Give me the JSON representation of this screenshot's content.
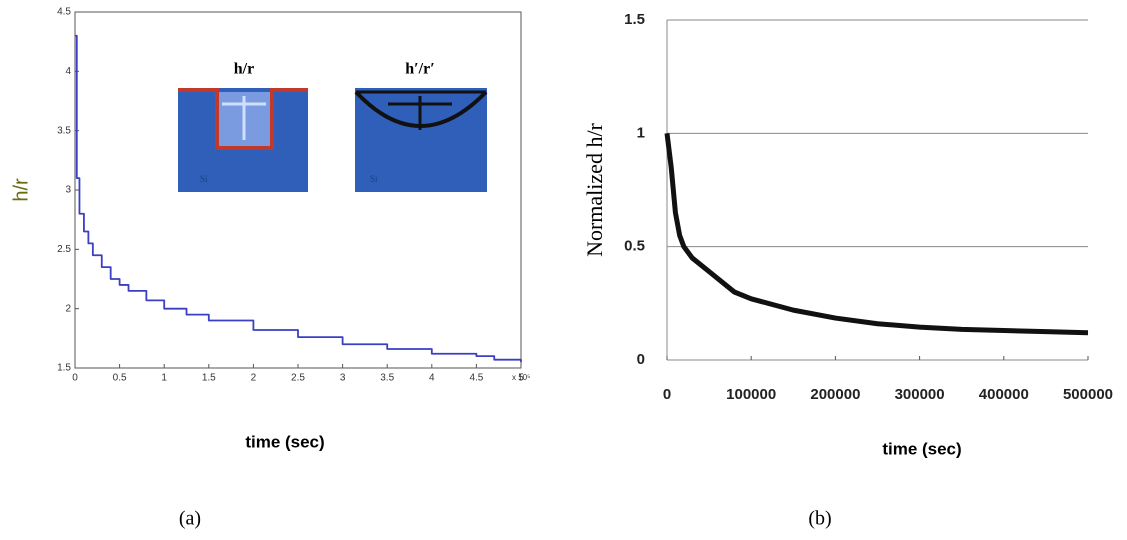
{
  "chart_data": [
    {
      "type": "line",
      "step": true,
      "caption": "(a)",
      "x_label": "time (sec)",
      "y_label": "h/r",
      "x_multiplier": "x 10⁵",
      "inset_labels": [
        "h/r",
        "h′/r′",
        "Si",
        "Si"
      ],
      "x": [
        0,
        0.02,
        0.05,
        0.1,
        0.15,
        0.2,
        0.3,
        0.4,
        0.5,
        0.6,
        0.8,
        1.0,
        1.25,
        1.5,
        2.0,
        2.5,
        3.0,
        3.5,
        4.0,
        4.5,
        4.7,
        5.0
      ],
      "series": [
        {
          "color": "#3a3fc4",
          "values": [
            4.3,
            3.1,
            2.8,
            2.65,
            2.55,
            2.45,
            2.35,
            2.25,
            2.2,
            2.15,
            2.07,
            2.0,
            1.95,
            1.9,
            1.82,
            1.76,
            1.7,
            1.66,
            1.62,
            1.6,
            1.57,
            1.55
          ]
        }
      ],
      "xlim": [
        0,
        5
      ],
      "xticks": [
        0,
        0.5,
        1,
        1.5,
        2,
        2.5,
        3,
        3.5,
        4,
        4.5,
        5
      ],
      "ylim": [
        1.5,
        4.5
      ],
      "yticks": [
        1.5,
        2,
        2.5,
        3,
        3.5,
        4,
        4.5
      ],
      "grid": false,
      "frame": true
    },
    {
      "type": "line",
      "step": false,
      "caption": "(b)",
      "x_label": "time (sec)",
      "y_label": "Normalized h/r",
      "x": [
        0,
        5000,
        10000,
        15000,
        20000,
        30000,
        50000,
        80000,
        100000,
        150000,
        200000,
        250000,
        300000,
        350000,
        400000,
        450000,
        500000
      ],
      "series": [
        {
          "color": "#111111",
          "values": [
            1.0,
            0.85,
            0.65,
            0.55,
            0.5,
            0.45,
            0.39,
            0.3,
            0.27,
            0.22,
            0.185,
            0.16,
            0.145,
            0.135,
            0.13,
            0.125,
            0.12
          ]
        }
      ],
      "xlim": [
        0,
        500000
      ],
      "xticks": [
        0,
        100000,
        200000,
        300000,
        400000,
        500000
      ],
      "ylim": [
        0,
        1.5
      ],
      "yticks": [
        0,
        0.5,
        1,
        1.5
      ],
      "grid": true,
      "frame": false
    }
  ]
}
